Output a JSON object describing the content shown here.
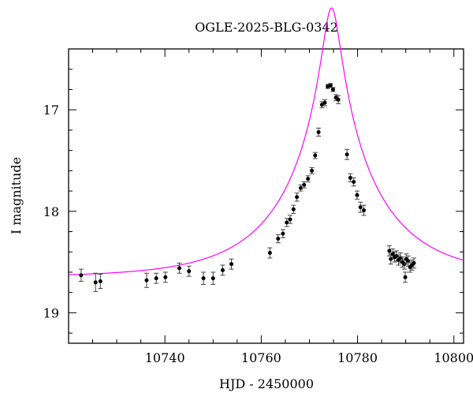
{
  "chart_data": {
    "type": "scatter",
    "title": "OGLE-2025-BLG-0342",
    "xlabel": "HJD - 2450000",
    "ylabel": "I magnitude",
    "xlim": [
      10720,
      10802
    ],
    "ylim": [
      19.3,
      16.4
    ],
    "y_inverted": true,
    "grid": false,
    "x_ticks": [
      {
        "value": 10740,
        "label": "10740"
      },
      {
        "value": 10760,
        "label": "10760"
      },
      {
        "value": 10780,
        "label": "10780"
      },
      {
        "value": 10800,
        "label": "10800"
      }
    ],
    "y_ticks": [
      {
        "value": 17,
        "label": "17"
      },
      {
        "value": 18,
        "label": "18"
      },
      {
        "value": 19,
        "label": "19"
      }
    ],
    "model_color": "#ff00ff",
    "point_color": "#000000",
    "model": {
      "t0": 10774.6,
      "tE": 20.0,
      "u0": 0.087,
      "baseline_mag": 18.65
    },
    "series": [
      {
        "x": [
          10722.6,
          10725.6,
          10726.6,
          10736.2,
          10738.2,
          10740.1,
          10743.0,
          10745.0,
          10748.0,
          10750.0,
          10752.0,
          10753.8,
          10761.8,
          10763.5,
          10764.5,
          10765.3,
          10766.0,
          10766.7,
          10767.4,
          10768.2,
          10768.9,
          10769.7,
          10770.5,
          10771.2,
          10771.9,
          10772.6,
          10773.2,
          10773.8,
          10774.4,
          10774.9,
          10775.5,
          10776.0,
          10777.8,
          10778.5,
          10779.2,
          10779.9,
          10780.6,
          10781.3,
          10786.6,
          10786.9,
          10787.3,
          10787.7,
          10788.1,
          10788.5,
          10788.9,
          10789.3,
          10789.7,
          10790.1,
          10790.5,
          10790.9,
          10791.3,
          10791.7,
          10789.9
        ],
        "y": [
          18.63,
          18.7,
          18.69,
          18.68,
          18.66,
          18.65,
          18.56,
          18.59,
          18.66,
          18.66,
          18.58,
          18.52,
          18.41,
          18.27,
          18.22,
          18.11,
          18.08,
          17.98,
          17.86,
          17.77,
          17.74,
          17.68,
          17.6,
          17.45,
          17.22,
          16.95,
          16.93,
          16.77,
          16.76,
          16.8,
          16.88,
          16.9,
          17.44,
          17.67,
          17.71,
          17.84,
          17.96,
          17.99,
          18.39,
          18.47,
          18.42,
          18.45,
          18.44,
          18.48,
          18.46,
          18.5,
          18.52,
          18.47,
          18.49,
          18.55,
          18.53,
          18.51,
          18.65
        ],
        "err": [
          0.06,
          0.09,
          0.07,
          0.07,
          0.05,
          0.05,
          0.05,
          0.05,
          0.06,
          0.06,
          0.05,
          0.05,
          0.05,
          0.04,
          0.04,
          0.04,
          0.04,
          0.04,
          0.04,
          0.03,
          0.03,
          0.03,
          0.03,
          0.03,
          0.04,
          0.03,
          0.03,
          0.02,
          0.02,
          0.02,
          0.03,
          0.04,
          0.05,
          0.04,
          0.04,
          0.04,
          0.05,
          0.05,
          0.05,
          0.05,
          0.05,
          0.05,
          0.05,
          0.05,
          0.05,
          0.05,
          0.05,
          0.05,
          0.05,
          0.05,
          0.05,
          0.05,
          0.05
        ]
      }
    ]
  }
}
